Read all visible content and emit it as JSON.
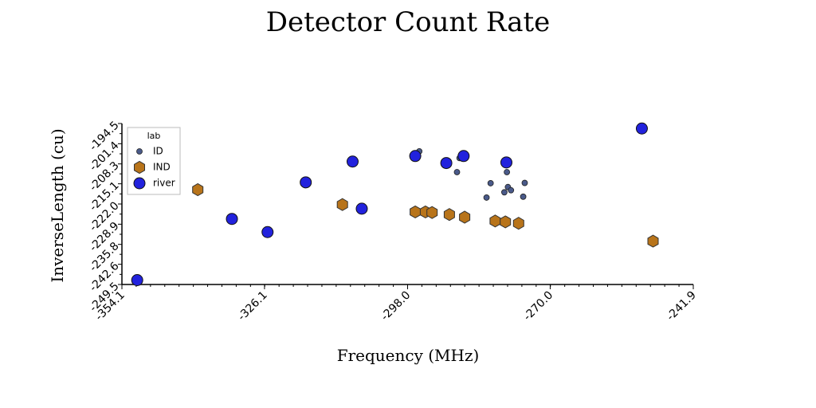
{
  "chart_data": {
    "type": "scatter",
    "title": "Detector Count Rate",
    "xlabel": "Frequency (MHz)",
    "ylabel": "InverseLength (cu)",
    "xlim": [
      -354.1,
      -241.9
    ],
    "ylim": [
      -249.5,
      -194.5
    ],
    "xticks": [
      "-354.1",
      "-326.1",
      "-298.0",
      "-270.0",
      "-241.9"
    ],
    "xtick_values": [
      -354.1,
      -326.1,
      -298.0,
      -270.0,
      -241.9
    ],
    "yticks": [
      "-249.5",
      "-242.6",
      "-235.8",
      "-228.9",
      "-222.0",
      "-215.1",
      "-208.3",
      "-201.4",
      "-194.5"
    ],
    "ytick_values": [
      -249.5,
      -242.6,
      -235.8,
      -228.9,
      -222.0,
      -215.1,
      -208.3,
      -201.4,
      -194.5
    ],
    "legend_title": "lab",
    "legend_position": "top-left",
    "series": [
      {
        "name": "ID",
        "marker": "small-circle",
        "color": "#4a5a8a",
        "points": [
          [
            -295.7,
            -204.0
          ],
          [
            -287.8,
            -206.3
          ],
          [
            -288.3,
            -211.1
          ],
          [
            -281.7,
            -214.9
          ],
          [
            -278.5,
            -211.1
          ],
          [
            -278.3,
            -216.2
          ],
          [
            -277.7,
            -217.3
          ],
          [
            -275.3,
            -219.5
          ],
          [
            -275.0,
            -214.8
          ],
          [
            -282.5,
            -219.8
          ],
          [
            -279.0,
            -218.0
          ]
        ]
      },
      {
        "name": "IND",
        "marker": "hexagon",
        "color": "#b8741a",
        "points": [
          [
            -339.2,
            -217.1
          ],
          [
            -310.8,
            -222.2
          ],
          [
            -296.5,
            -224.7
          ],
          [
            -294.5,
            -224.7
          ],
          [
            -293.2,
            -224.9
          ],
          [
            -289.8,
            -225.6
          ],
          [
            -286.8,
            -226.5
          ],
          [
            -280.8,
            -227.8
          ],
          [
            -278.8,
            -228.1
          ],
          [
            -276.2,
            -228.6
          ],
          [
            -249.8,
            -234.7
          ]
        ]
      },
      {
        "name": "river",
        "marker": "circle",
        "color": "#2222dd",
        "points": [
          [
            -351.1,
            -248.0
          ],
          [
            -332.5,
            -227.1
          ],
          [
            -325.5,
            -231.6
          ],
          [
            -318.0,
            -214.6
          ],
          [
            -307.0,
            -223.6
          ],
          [
            -308.8,
            -207.5
          ],
          [
            -296.5,
            -205.6
          ],
          [
            -290.4,
            -208.0
          ],
          [
            -287.0,
            -205.6
          ],
          [
            -278.6,
            -207.8
          ],
          [
            -252.0,
            -196.2
          ]
        ]
      }
    ]
  }
}
